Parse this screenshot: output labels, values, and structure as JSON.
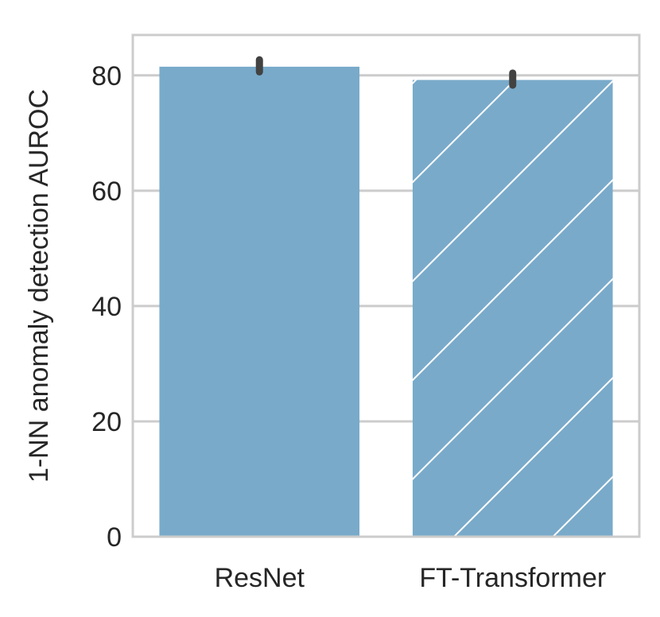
{
  "chart_data": {
    "type": "bar",
    "categories": [
      "ResNet",
      "FT-Transformer"
    ],
    "values": [
      81.5,
      79.2
    ],
    "errors": [
      [
        80.6,
        82.7
      ],
      [
        78.3,
        80.4
      ]
    ],
    "hatch": [
      false,
      true
    ],
    "xlabel": "",
    "ylabel": "1-NN anomaly detection AUROC",
    "ylim": [
      0,
      87
    ],
    "yticks": [
      0,
      20,
      40,
      60,
      80
    ],
    "grid": "y",
    "colors": {
      "bar": "#79aaca",
      "hatch": "#ffffff",
      "error": "#424242",
      "grid": "#cccccc",
      "frame": "#cccccc"
    }
  }
}
